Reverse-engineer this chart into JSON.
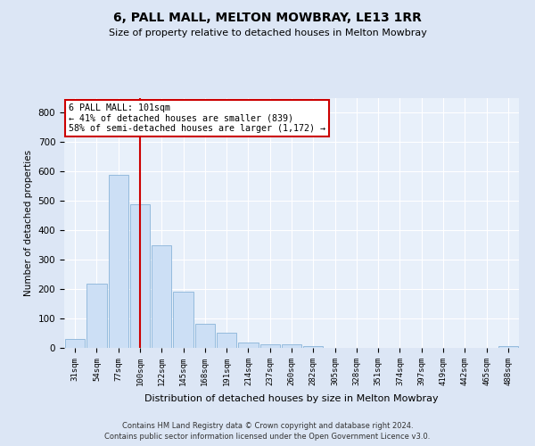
{
  "title1": "6, PALL MALL, MELTON MOWBRAY, LE13 1RR",
  "title2": "Size of property relative to detached houses in Melton Mowbray",
  "xlabel": "Distribution of detached houses by size in Melton Mowbray",
  "ylabel": "Number of detached properties",
  "bin_labels": [
    "31sqm",
    "54sqm",
    "77sqm",
    "100sqm",
    "122sqm",
    "145sqm",
    "168sqm",
    "191sqm",
    "214sqm",
    "237sqm",
    "260sqm",
    "282sqm",
    "305sqm",
    "328sqm",
    "351sqm",
    "374sqm",
    "397sqm",
    "419sqm",
    "442sqm",
    "465sqm",
    "488sqm"
  ],
  "bar_values": [
    30,
    220,
    590,
    490,
    350,
    190,
    83,
    52,
    17,
    13,
    12,
    7,
    1,
    0,
    0,
    0,
    0,
    0,
    0,
    0,
    5
  ],
  "bar_color": "#ccdff5",
  "bar_edge_color": "#8ab4d9",
  "vline_x": 3,
  "vline_color": "#cc0000",
  "annotation_text": "6 PALL MALL: 101sqm\n← 41% of detached houses are smaller (839)\n58% of semi-detached houses are larger (1,172) →",
  "annotation_box_color": "#ffffff",
  "annotation_box_edge": "#cc0000",
  "ylim": [
    0,
    850
  ],
  "yticks": [
    0,
    100,
    200,
    300,
    400,
    500,
    600,
    700,
    800
  ],
  "footer1": "Contains HM Land Registry data © Crown copyright and database right 2024.",
  "footer2": "Contains public sector information licensed under the Open Government Licence v3.0.",
  "bg_color": "#dce6f5",
  "plot_bg_color": "#e8f0fa"
}
